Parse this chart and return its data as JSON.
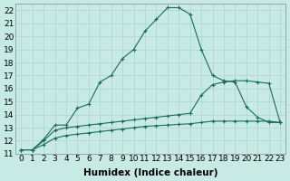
{
  "xlabel": "Humidex (Indice chaleur)",
  "bg_color": "#c8eae4",
  "grid_color": "#aad4cc",
  "line_color": "#1a6b5a",
  "line1_x": [
    0,
    1,
    2,
    3,
    4,
    5,
    6,
    7,
    8,
    9,
    10,
    11,
    12,
    13,
    14,
    15,
    16,
    17,
    18,
    19,
    20,
    21,
    22,
    23
  ],
  "line1_y": [
    11.3,
    11.3,
    12.1,
    13.2,
    13.2,
    14.5,
    14.8,
    16.5,
    17.0,
    18.3,
    19.0,
    20.4,
    21.3,
    22.2,
    22.2,
    21.7,
    19.0,
    17.0,
    16.6,
    16.5,
    14.6,
    13.8,
    13.4,
    13.4
  ],
  "line2_x": [
    0,
    1,
    2,
    3,
    4,
    5,
    6,
    7,
    8,
    9,
    10,
    11,
    12,
    13,
    14,
    15,
    16,
    17,
    18,
    19,
    20,
    21,
    22,
    23
  ],
  "line2_y": [
    11.3,
    11.3,
    12.0,
    12.8,
    13.0,
    13.1,
    13.2,
    13.3,
    13.4,
    13.5,
    13.6,
    13.7,
    13.8,
    13.9,
    14.0,
    14.1,
    15.5,
    16.3,
    16.5,
    16.6,
    16.6,
    16.5,
    16.4,
    13.4
  ],
  "line3_x": [
    0,
    1,
    2,
    3,
    4,
    5,
    6,
    7,
    8,
    9,
    10,
    11,
    12,
    13,
    14,
    15,
    16,
    17,
    18,
    19,
    20,
    21,
    22,
    23
  ],
  "line3_y": [
    11.3,
    11.3,
    11.7,
    12.2,
    12.4,
    12.5,
    12.6,
    12.7,
    12.8,
    12.9,
    13.0,
    13.1,
    13.15,
    13.2,
    13.25,
    13.3,
    13.4,
    13.5,
    13.5,
    13.5,
    13.5,
    13.5,
    13.5,
    13.4
  ],
  "xtick_labels": [
    "0",
    "1",
    "2",
    "3",
    "4",
    "5",
    "6",
    "7",
    "8",
    "9",
    "10",
    "11",
    "12",
    "13",
    "14",
    "15",
    "16",
    "17",
    "18",
    "19",
    "20",
    "21",
    "22",
    "23"
  ],
  "ytick_labels": [
    "11",
    "12",
    "13",
    "14",
    "15",
    "16",
    "17",
    "18",
    "19",
    "20",
    "21",
    "22"
  ],
  "xlim": [
    -0.5,
    23.5
  ],
  "ylim": [
    11,
    22.5
  ],
  "tick_fontsize": 6.5,
  "label_fontsize": 7.5
}
